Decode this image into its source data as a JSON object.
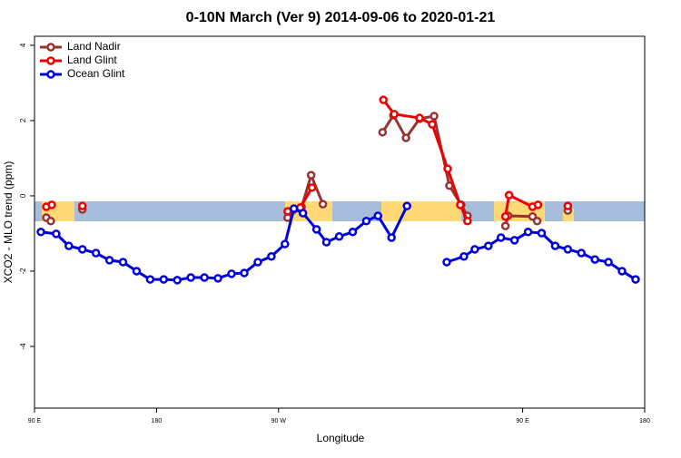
{
  "chart_data": {
    "type": "line",
    "title": "0-10N March (Ver 9)   2014-09-06 to 2020-01-21",
    "xlabel": "Longitude",
    "ylabel": "XCO2 - MLO trend (ppm)",
    "xlim": [
      90,
      540
    ],
    "ylim": [
      -5.64,
      4.24
    ],
    "xticks": [
      {
        "value": 90,
        "label": "90 E"
      },
      {
        "value": 180,
        "label": "180"
      },
      {
        "value": 270,
        "label": "90 W"
      },
      {
        "value": 450,
        "label": "90 E"
      },
      {
        "value": 540,
        "label": "180"
      }
    ],
    "yticks": [
      -4,
      -2,
      0,
      2,
      4
    ],
    "legend": "top-left",
    "series": [
      {
        "name": "Land Nadir",
        "color": "#993333",
        "x": [
          98.7,
          102,
          110,
          125.3,
          200,
          276.7,
          287,
          294,
          302.7,
          320,
          346.7,
          354.7,
          364,
          374,
          384.7,
          396,
          404.7,
          409.3,
          420,
          437.3,
          439.3,
          457.3,
          460.7,
          470,
          483.3
        ],
        "values": [
          -0.58,
          -0.67,
          null,
          -0.36,
          null,
          -0.58,
          -0.3,
          0.55,
          -0.22,
          null,
          1.69,
          2.14,
          1.54,
          2.05,
          2.12,
          0.27,
          -0.24,
          -0.53,
          null,
          -0.8,
          -0.53,
          -0.55,
          -0.67,
          null,
          -0.39
        ]
      },
      {
        "name": "Land Glint",
        "color": "#ee0000",
        "x": [
          98.7,
          102.7,
          110,
          125.3,
          200,
          276.7,
          286,
          294.7,
          320,
          347.3,
          355.3,
          374,
          383.3,
          394.7,
          404,
          409.3,
          420,
          437.3,
          440,
          457.3,
          461.3,
          470,
          483.3
        ],
        "values": [
          -0.29,
          -0.24,
          null,
          -0.27,
          null,
          -0.41,
          -0.31,
          0.22,
          null,
          2.55,
          2.17,
          2.07,
          1.9,
          0.72,
          -0.24,
          -0.67,
          null,
          -0.55,
          0.02,
          -0.29,
          -0.24,
          null,
          -0.27
        ]
      },
      {
        "name": "Ocean Glint",
        "color": "#0000dd",
        "x": [
          94.7,
          106,
          115.3,
          125.3,
          135.3,
          145.3,
          155.3,
          165.3,
          175.3,
          185.3,
          195.3,
          205.3,
          215.3,
          225.3,
          235.3,
          244.7,
          254.7,
          264.7,
          274.7,
          281.3,
          288,
          298,
          305.3,
          314.7,
          324.7,
          334.7,
          343.3,
          353.3,
          364.7,
          380,
          394,
          406.7,
          414.7,
          424.7,
          434,
          444,
          454,
          464,
          474,
          483.3,
          493.3,
          503.3,
          513.3,
          523.3,
          533.3
        ],
        "values": [
          -0.96,
          -1.01,
          -1.33,
          -1.42,
          -1.52,
          -1.71,
          -1.76,
          -2.0,
          -2.22,
          -2.22,
          -2.24,
          -2.17,
          -2.17,
          -2.19,
          -2.07,
          -2.05,
          -1.76,
          -1.61,
          -1.28,
          -0.34,
          -0.46,
          -0.89,
          -1.23,
          -1.08,
          -0.96,
          -0.67,
          -0.53,
          -1.11,
          -0.27,
          null,
          -1.76,
          -1.61,
          -1.42,
          -1.33,
          -1.11,
          -1.18,
          -0.96,
          -0.99,
          -1.33,
          -1.42,
          -1.52,
          -1.69,
          -1.76,
          -2.0,
          -2.22
        ]
      }
    ]
  }
}
